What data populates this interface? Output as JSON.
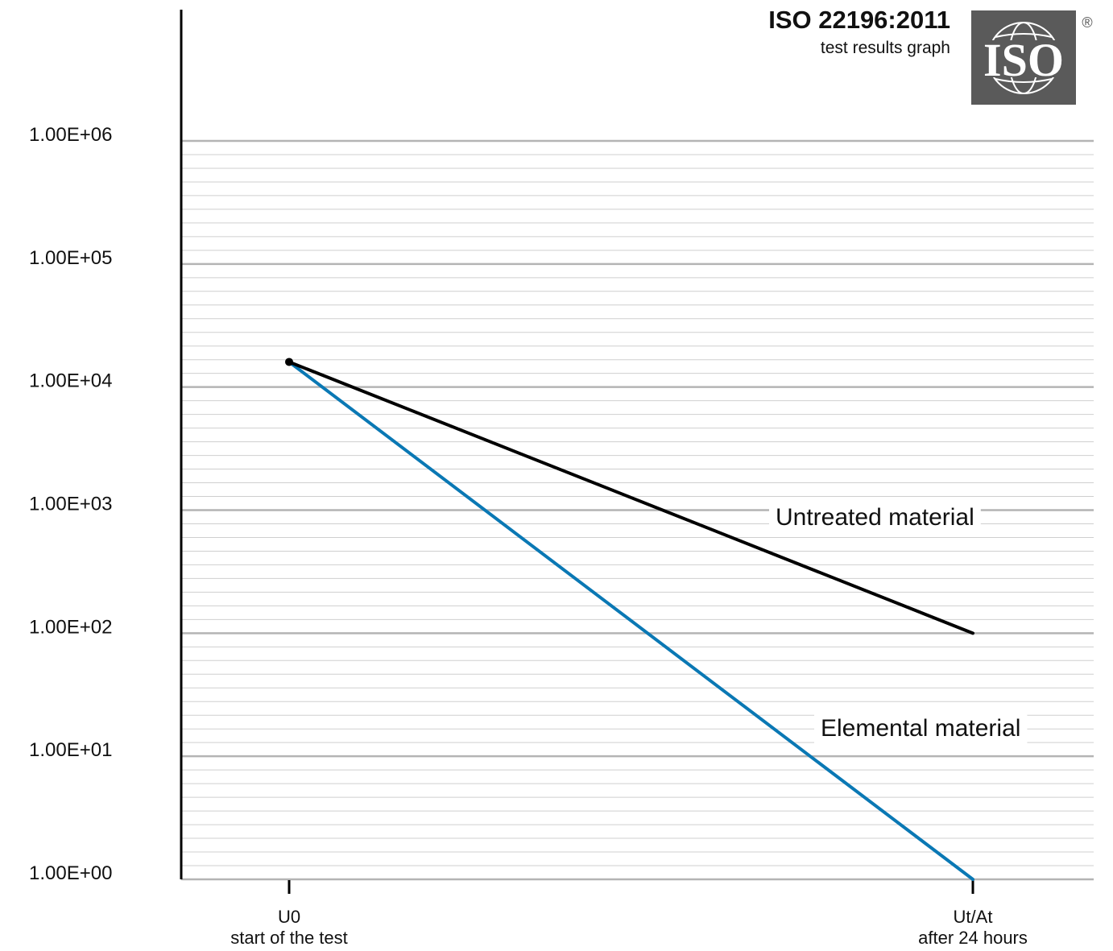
{
  "header": {
    "title": "ISO 22196:2011",
    "subtitle": "test results graph",
    "logo_text": "ISO",
    "registered_mark": "®"
  },
  "colors": {
    "untreated": "#000000",
    "elemental": "#0a78b4",
    "major_grid": "#b4b4b4",
    "minor_grid": "#cfcfcf",
    "logo_bg": "#5a5a5a"
  },
  "chart_data": {
    "type": "line",
    "y_scale": "log",
    "ylim": [
      1,
      1000000
    ],
    "y_tick_values": [
      1000000,
      100000,
      10000,
      1000,
      100,
      10,
      1
    ],
    "y_tick_labels": [
      "1.00E+06",
      "1.00E+05",
      "1.00E+04",
      "1.00E+03",
      "1.00E+02",
      "1.00E+01",
      "1.00E+00"
    ],
    "grid": true,
    "categories": [
      {
        "code": "U0",
        "description": "start of the test"
      },
      {
        "code": "Ut/At",
        "description": "after 24 hours"
      }
    ],
    "series": [
      {
        "name": "Untreated material",
        "values": [
          16000,
          100
        ],
        "color": "#000000"
      },
      {
        "name": "Elemental material",
        "values": [
          16000,
          1
        ],
        "color": "#0a78b4"
      }
    ]
  }
}
